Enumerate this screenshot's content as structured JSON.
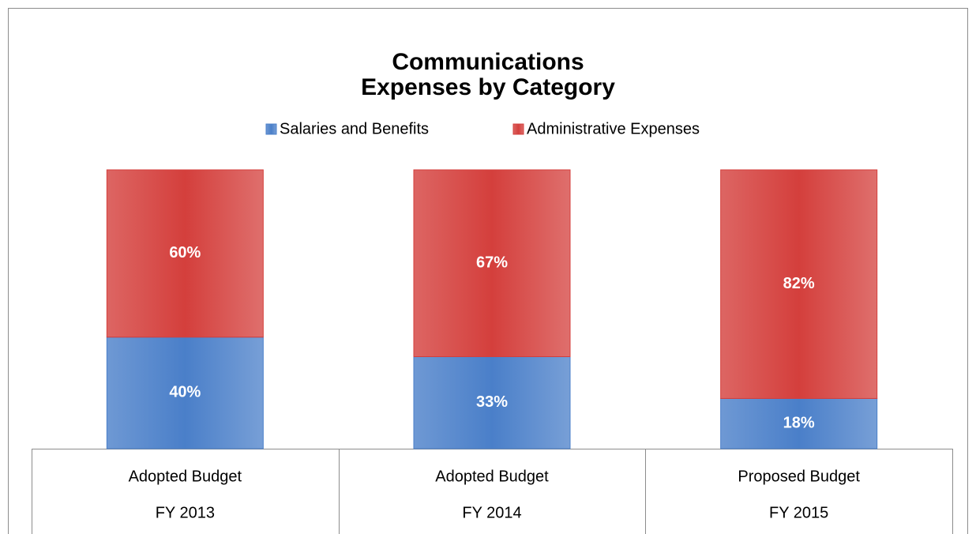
{
  "chart_data": {
    "type": "stacked_bar",
    "title": [
      "Communications",
      "Expenses by Category"
    ],
    "categories": [
      [
        "Adopted Budget",
        "FY 2013"
      ],
      [
        "Adopted Budget",
        "FY 2014"
      ],
      [
        "Proposed Budget",
        "FY 2015"
      ]
    ],
    "series": [
      {
        "name": "Salaries and Benefits",
        "color": "#4a7fc9",
        "values": [
          40,
          33,
          18
        ],
        "value_labels": [
          "40%",
          "33%",
          "18%"
        ]
      },
      {
        "name": "Administrative Expenses",
        "color": "#d43f3c",
        "values": [
          60,
          67,
          82
        ],
        "value_labels": [
          "60%",
          "67%",
          "82%"
        ]
      }
    ],
    "legend": "top"
  }
}
